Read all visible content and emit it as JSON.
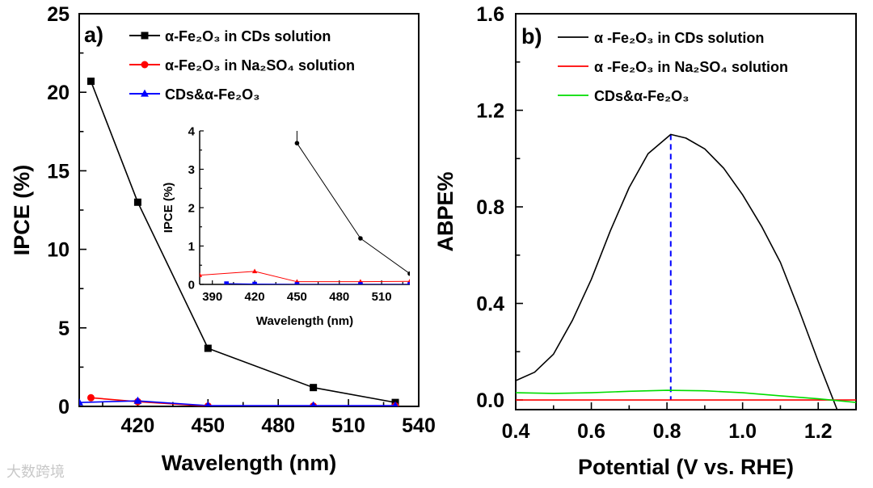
{
  "chart_data": [
    {
      "type": "line",
      "panel_label": "a)",
      "xlabel": "Wavelength (nm)",
      "ylabel": "IPCE (%)",
      "xlim": [
        395,
        540
      ],
      "ylim": [
        0,
        25
      ],
      "xticks": [
        420,
        450,
        480,
        510,
        540
      ],
      "yticks": [
        0,
        5,
        10,
        15,
        20,
        25
      ],
      "legend_position": "top-left",
      "series": [
        {
          "name": "α-Fe₂O₃ in CDs solution",
          "color": "#000000",
          "marker": "square",
          "x": [
            400,
            420,
            450,
            495,
            530
          ],
          "y": [
            20.7,
            13.0,
            3.7,
            1.2,
            0.25
          ]
        },
        {
          "name": "α-Fe₂O₃ in Na₂SO₄ solution",
          "color": "#ff0000",
          "marker": "circle",
          "x": [
            400,
            420,
            450,
            495,
            530
          ],
          "y": [
            0.55,
            0.3,
            0.02,
            0.02,
            0.03
          ]
        },
        {
          "name": "CDs&α-Fe₂O₃",
          "color": "#0000ff",
          "marker": "triangle",
          "x": [
            395,
            420,
            450,
            495,
            530
          ],
          "y": [
            0.25,
            0.35,
            0.05,
            0.05,
            0.05
          ]
        }
      ],
      "inset": {
        "xlabel": "Wavelength (nm)",
        "ylabel": "IPCE (%)",
        "xlim": [
          381,
          530
        ],
        "ylim": [
          0,
          4
        ],
        "xticks": [
          390,
          420,
          450,
          480,
          510
        ],
        "yticks": [
          0,
          1,
          2,
          3,
          4
        ],
        "series": [
          {
            "name": "α-Fe₂O₃ in CDs solution",
            "color": "#000000",
            "marker": "circle",
            "x": [
              450,
              450,
              495,
              530
            ],
            "y": [
              4.0,
              3.68,
              1.2,
              0.28
            ],
            "marker_from": 1
          },
          {
            "name": "α-Fe₂O₃ in Na₂SO₄ solution",
            "color": "#ff0000",
            "marker": "triangle",
            "x": [
              381,
              420,
              450,
              495,
              530
            ],
            "y": [
              0.24,
              0.34,
              0.07,
              0.07,
              0.08
            ],
            "marker_from": 0
          },
          {
            "name": "CDs&α-Fe₂O₃",
            "color": "#0000ff",
            "marker": "square",
            "x": [
              400,
              420,
              450,
              495,
              530
            ],
            "y": [
              0.02,
              0.01,
              0.0,
              0.0,
              0.0
            ],
            "marker_from": 0
          }
        ]
      }
    },
    {
      "type": "line",
      "panel_label": "b)",
      "xlabel": "Potential (V vs. RHE)",
      "ylabel": "ABPE%",
      "xlim": [
        0.4,
        1.3
      ],
      "ylim": [
        -0.04,
        1.6
      ],
      "xticks": [
        "0.4",
        "0.6",
        "0.8",
        "1.0",
        "1.2"
      ],
      "yticks": [
        "0.0",
        "0.4",
        "0.8",
        "1.2",
        "1.6"
      ],
      "legend_position": "top-left",
      "peak_marker": {
        "x": 0.81,
        "y": 1.1,
        "color": "#0000ff",
        "style": "dashed"
      },
      "series": [
        {
          "name": "α -Fe₂O₃ in CDs solution",
          "color": "#000000",
          "x": [
            0.4,
            0.45,
            0.5,
            0.55,
            0.6,
            0.65,
            0.7,
            0.75,
            0.81,
            0.85,
            0.9,
            0.95,
            1.0,
            1.05,
            1.1,
            1.15,
            1.2,
            1.24,
            1.25
          ],
          "y": [
            0.08,
            0.115,
            0.19,
            0.33,
            0.5,
            0.7,
            0.88,
            1.02,
            1.1,
            1.085,
            1.04,
            0.96,
            0.85,
            0.72,
            0.57,
            0.37,
            0.16,
            0.0,
            -0.04
          ]
        },
        {
          "name": "α -Fe₂O₃ in Na₂SO₄ solution",
          "color": "#ff0000",
          "x": [
            0.4,
            1.3
          ],
          "y": [
            0.0,
            0.0
          ]
        },
        {
          "name": "CDs&α-Fe₂O₃",
          "color": "#00dd00",
          "x": [
            0.4,
            0.5,
            0.6,
            0.7,
            0.8,
            0.9,
            1.0,
            1.1,
            1.2,
            1.3
          ],
          "y": [
            0.03,
            0.027,
            0.03,
            0.036,
            0.04,
            0.038,
            0.03,
            0.017,
            0.005,
            -0.01
          ]
        }
      ]
    }
  ],
  "watermark": "大数跨境"
}
